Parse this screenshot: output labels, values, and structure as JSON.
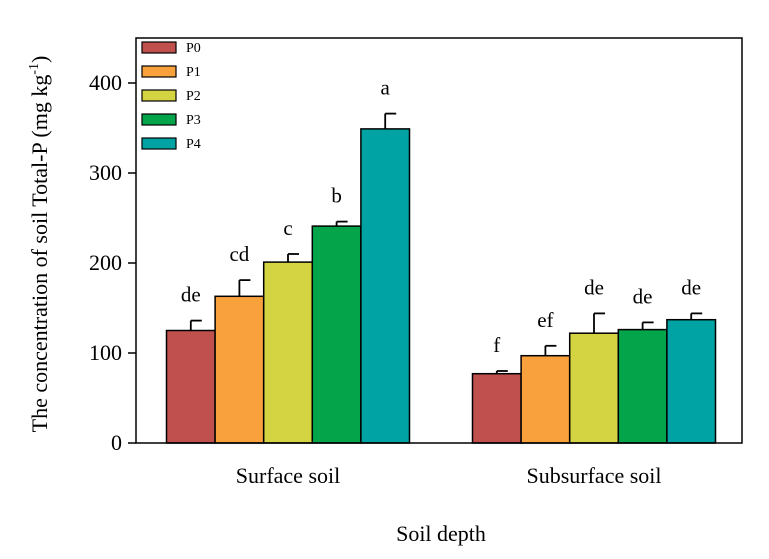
{
  "chart_data": {
    "type": "bar",
    "title": "",
    "xlabel": "Soil depth",
    "ylabel": {
      "prefix": "The concentration of soil Total-P (mg kg",
      "superscript": "-1",
      "suffix": ")"
    },
    "ylim": [
      0,
      450
    ],
    "yticks": [
      0,
      100,
      200,
      300,
      400
    ],
    "categories": [
      "Surface soil",
      "Subsurface soil"
    ],
    "legend_position": "top-left",
    "series": [
      {
        "name": "P0",
        "color": "#c0504d",
        "values": [
          125,
          77
        ],
        "errors": [
          11,
          3
        ],
        "letters": [
          "de",
          "f"
        ]
      },
      {
        "name": "P1",
        "color": "#f9a13d",
        "values": [
          163,
          97
        ],
        "errors": [
          18,
          11
        ],
        "letters": [
          "cd",
          "ef"
        ]
      },
      {
        "name": "P2",
        "color": "#d4d443",
        "values": [
          201,
          122
        ],
        "errors": [
          9,
          22
        ],
        "letters": [
          "c",
          "de"
        ]
      },
      {
        "name": "P3",
        "color": "#03a44a",
        "values": [
          241,
          126
        ],
        "errors": [
          5,
          8
        ],
        "letters": [
          "b",
          "de"
        ]
      },
      {
        "name": "P4",
        "color": "#00a3a4",
        "values": [
          349,
          137
        ],
        "errors": [
          17,
          7
        ],
        "letters": [
          "a",
          "de"
        ]
      }
    ]
  }
}
